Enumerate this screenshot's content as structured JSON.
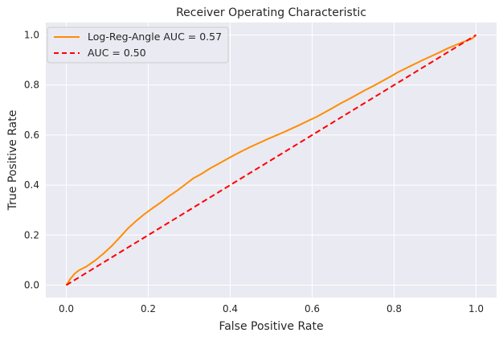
{
  "chart_data": {
    "type": "line",
    "title": "Receiver Operating Characteristic",
    "xlabel": "False Positive Rate",
    "ylabel": "True Positive Rate",
    "xlim": [
      -0.05,
      1.05
    ],
    "ylim": [
      -0.05,
      1.05
    ],
    "xticks": [
      0.0,
      0.2,
      0.4,
      0.6,
      0.8,
      1.0
    ],
    "yticks": [
      0.0,
      0.2,
      0.4,
      0.6,
      0.8,
      1.0
    ],
    "xtick_labels": [
      "0.0",
      "0.2",
      "0.4",
      "0.6",
      "0.8",
      "1.0"
    ],
    "ytick_labels": [
      "0.0",
      "0.2",
      "0.4",
      "0.6",
      "0.8",
      "1.0"
    ],
    "grid": true,
    "legend_position": "upper-left",
    "background_color": "#eaeaf2",
    "series": [
      {
        "name": "Log-Reg-Angle AUC = 0.57",
        "color": "#ff8c00",
        "style": "solid",
        "x": [
          0.0,
          0.01,
          0.02,
          0.03,
          0.05,
          0.07,
          0.09,
          0.11,
          0.13,
          0.15,
          0.17,
          0.19,
          0.21,
          0.23,
          0.25,
          0.27,
          0.29,
          0.31,
          0.33,
          0.35,
          0.37,
          0.39,
          0.41,
          0.43,
          0.45,
          0.47,
          0.49,
          0.51,
          0.53,
          0.55,
          0.57,
          0.59,
          0.61,
          0.63,
          0.65,
          0.67,
          0.69,
          0.71,
          0.73,
          0.75,
          0.77,
          0.79,
          0.81,
          0.83,
          0.85,
          0.87,
          0.89,
          0.91,
          0.93,
          0.95,
          0.97,
          0.99,
          1.0
        ],
        "y": [
          0.0,
          0.025,
          0.045,
          0.058,
          0.075,
          0.098,
          0.125,
          0.155,
          0.19,
          0.226,
          0.256,
          0.283,
          0.307,
          0.33,
          0.355,
          0.377,
          0.402,
          0.427,
          0.445,
          0.466,
          0.484,
          0.502,
          0.52,
          0.537,
          0.553,
          0.568,
          0.583,
          0.597,
          0.611,
          0.626,
          0.641,
          0.657,
          0.672,
          0.69,
          0.708,
          0.727,
          0.744,
          0.762,
          0.78,
          0.797,
          0.815,
          0.833,
          0.852,
          0.868,
          0.884,
          0.9,
          0.915,
          0.93,
          0.946,
          0.96,
          0.973,
          0.985,
          1.0
        ]
      },
      {
        "name": "AUC = 0.50",
        "color": "#ff0000",
        "style": "dashed",
        "x": [
          0.0,
          1.0
        ],
        "y": [
          0.0,
          1.0
        ]
      }
    ]
  }
}
